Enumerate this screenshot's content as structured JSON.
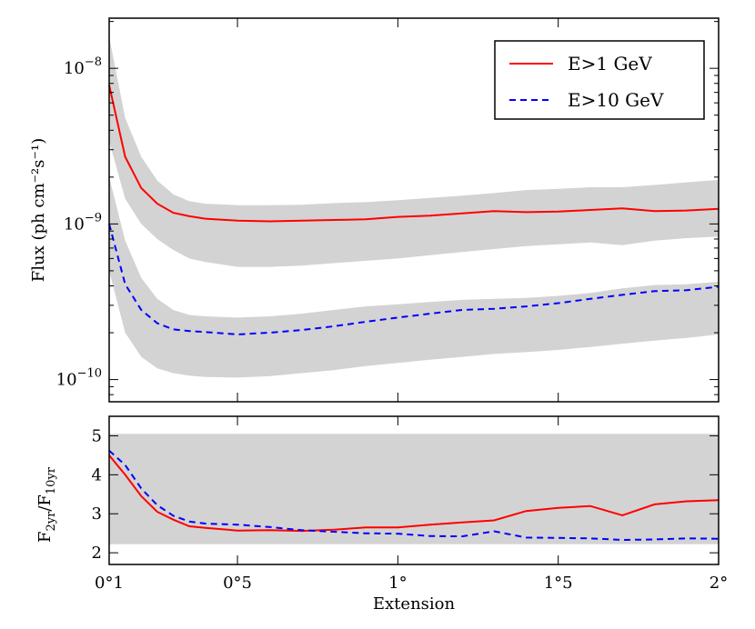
{
  "chart_data": [
    {
      "type": "line",
      "panel": "top",
      "yscale": "log",
      "ylim": [
        7.2e-11,
        2.1e-08
      ],
      "xlim": [
        0.1,
        2.0
      ],
      "ylabel": "Flux (ph cm⁻²s⁻¹)",
      "yticks": [
        {
          "value": 1e-08,
          "base": "10",
          "exp": "−8"
        },
        {
          "value": 1e-09,
          "base": "10",
          "exp": "−9"
        },
        {
          "value": 1e-10,
          "base": "10",
          "exp": "−10"
        }
      ],
      "x": [
        0.1,
        0.15,
        0.2,
        0.25,
        0.3,
        0.35,
        0.4,
        0.5,
        0.6,
        0.7,
        0.8,
        0.9,
        1.0,
        1.1,
        1.2,
        1.3,
        1.4,
        1.5,
        1.6,
        1.7,
        1.8,
        1.9,
        2.0
      ],
      "series": [
        {
          "name": "E>1 GeV",
          "color": "#ff0000",
          "style": "solid",
          "values": [
            7.8e-09,
            2.7e-09,
            1.7e-09,
            1.35e-09,
            1.18e-09,
            1.12e-09,
            1.08e-09,
            1.05e-09,
            1.04e-09,
            1.05e-09,
            1.06e-09,
            1.07e-09,
            1.11e-09,
            1.13e-09,
            1.17e-09,
            1.21e-09,
            1.19e-09,
            1.2e-09,
            1.23e-09,
            1.26e-09,
            1.21e-09,
            1.22e-09,
            1.25e-09
          ],
          "band_upper": [
            1.6e-08,
            4.8e-09,
            2.7e-09,
            1.9e-09,
            1.55e-09,
            1.4e-09,
            1.35e-09,
            1.32e-09,
            1.32e-09,
            1.33e-09,
            1.36e-09,
            1.38e-09,
            1.42e-09,
            1.47e-09,
            1.52e-09,
            1.58e-09,
            1.65e-09,
            1.68e-09,
            1.72e-09,
            1.72e-09,
            1.78e-09,
            1.85e-09,
            1.92e-09
          ],
          "band_lower": [
            3.4e-09,
            1.45e-09,
            1e-09,
            8e-10,
            6.8e-10,
            6e-10,
            5.7e-10,
            5.3e-10,
            5.3e-10,
            5.4e-10,
            5.6e-10,
            5.8e-10,
            6e-10,
            6.3e-10,
            6.6e-10,
            6.9e-10,
            7.2e-10,
            7.4e-10,
            7.6e-10,
            7.3e-10,
            7.8e-10,
            8.1e-10,
            8.3e-10
          ]
        },
        {
          "name": "E>10 GeV",
          "color": "#0000ff",
          "style": "dashed",
          "values": [
            1e-09,
            4.1e-10,
            2.8e-10,
            2.3e-10,
            2.1e-10,
            2.05e-10,
            2.02e-10,
            1.95e-10,
            2e-10,
            2.08e-10,
            2.2e-10,
            2.35e-10,
            2.5e-10,
            2.65e-10,
            2.8e-10,
            2.85e-10,
            2.95e-10,
            3.1e-10,
            3.3e-10,
            3.5e-10,
            3.7e-10,
            3.75e-10,
            3.95e-10
          ],
          "band_upper": [
            2e-09,
            7.8e-10,
            4.5e-10,
            3.3e-10,
            2.8e-10,
            2.6e-10,
            2.55e-10,
            2.5e-10,
            2.55e-10,
            2.65e-10,
            2.8e-10,
            2.95e-10,
            3.05e-10,
            3.15e-10,
            3.25e-10,
            3.3e-10,
            3.35e-10,
            3.45e-10,
            3.6e-10,
            3.85e-10,
            4.05e-10,
            4.1e-10,
            4.25e-10
          ],
          "band_lower": [
            5e-10,
            2e-10,
            1.4e-10,
            1.18e-10,
            1.1e-10,
            1.06e-10,
            1.04e-10,
            1.03e-10,
            1.05e-10,
            1.1e-10,
            1.15e-10,
            1.22e-10,
            1.28e-10,
            1.34e-10,
            1.4e-10,
            1.46e-10,
            1.5e-10,
            1.55e-10,
            1.62e-10,
            1.7e-10,
            1.78e-10,
            1.85e-10,
            1.95e-10
          ]
        }
      ],
      "legend": {
        "position": "top-right",
        "entries": [
          "E>1 GeV",
          "E>10 GeV"
        ]
      }
    },
    {
      "type": "line",
      "panel": "bottom",
      "ylim": [
        1.7,
        5.5
      ],
      "xlim": [
        0.1,
        2.0
      ],
      "xlabel": "Extension",
      "ylabel": {
        "main": "F",
        "sub1": "2yr",
        "sep": "/F",
        "sub2": "10yr"
      },
      "yticks": [
        2,
        3,
        4,
        5
      ],
      "xticks": [
        {
          "value": 0.1,
          "label": "0°1"
        },
        {
          "value": 0.5,
          "label": "0°5"
        },
        {
          "value": 1.0,
          "label": "1°"
        },
        {
          "value": 1.5,
          "label": "1°5"
        },
        {
          "value": 2.0,
          "label": "2°"
        }
      ],
      "band": [
        2.22,
        5.05
      ],
      "x": [
        0.1,
        0.15,
        0.2,
        0.25,
        0.3,
        0.35,
        0.4,
        0.5,
        0.6,
        0.7,
        0.8,
        0.9,
        1.0,
        1.1,
        1.2,
        1.3,
        1.4,
        1.5,
        1.6,
        1.7,
        1.8,
        1.9,
        2.0
      ],
      "series": [
        {
          "name": "E>1 GeV",
          "color": "#ff0000",
          "style": "solid",
          "values": [
            4.5,
            4.0,
            3.45,
            3.05,
            2.85,
            2.68,
            2.64,
            2.57,
            2.58,
            2.56,
            2.59,
            2.65,
            2.65,
            2.72,
            2.78,
            2.83,
            3.07,
            3.15,
            3.2,
            2.96,
            3.24,
            3.32,
            3.35
          ]
        },
        {
          "name": "E>10 GeV",
          "color": "#0000ff",
          "style": "dashed",
          "values": [
            4.62,
            4.25,
            3.65,
            3.22,
            2.95,
            2.8,
            2.75,
            2.72,
            2.66,
            2.58,
            2.54,
            2.5,
            2.49,
            2.43,
            2.42,
            2.55,
            2.39,
            2.38,
            2.37,
            2.33,
            2.34,
            2.37,
            2.36
          ]
        }
      ]
    }
  ]
}
